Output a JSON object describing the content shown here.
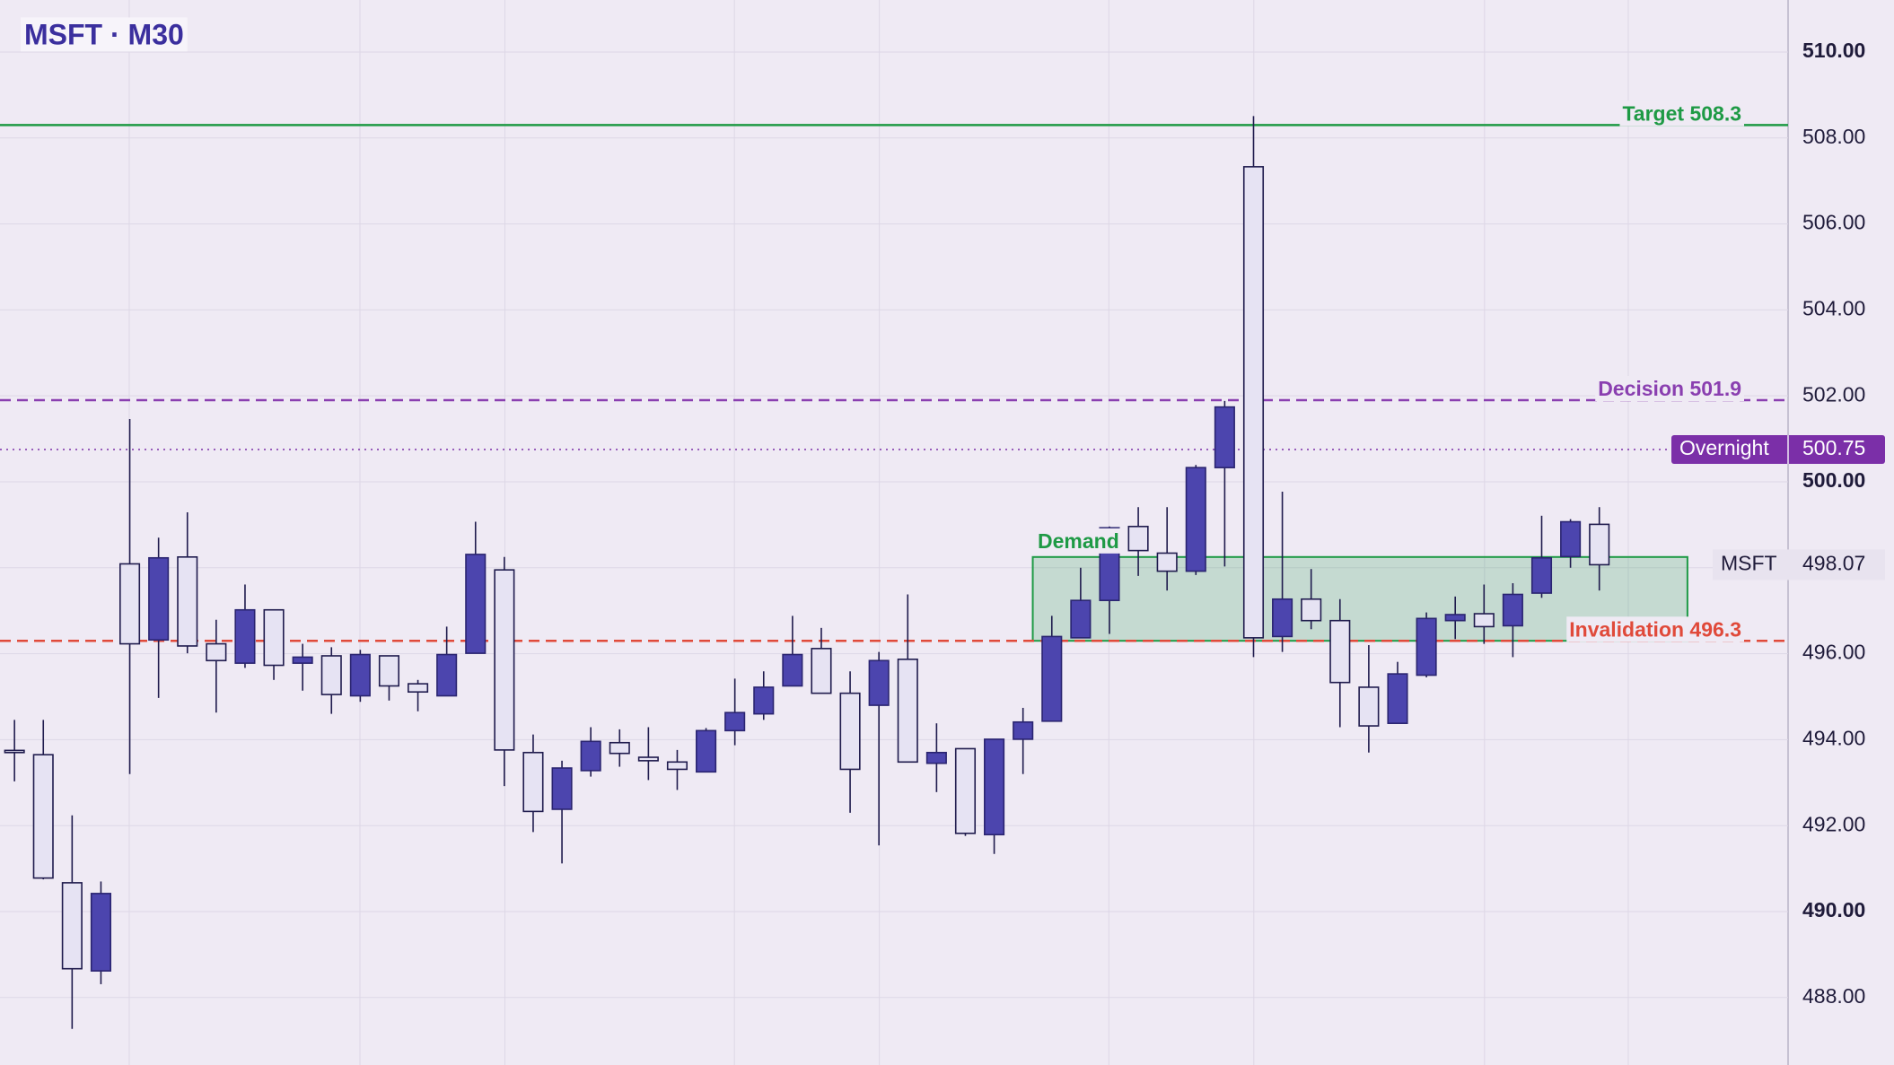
{
  "chart_data": {
    "type": "candlestick",
    "title": "MSFT · M30",
    "series": [
      {
        "name": "MSFT",
        "open": [
          493.75,
          493.65,
          490.67,
          488.62,
          498.09,
          496.32,
          498.25,
          496.23,
          495.78,
          497.02,
          495.78,
          495.95,
          495.02,
          495.95,
          495.3,
          495.02,
          496.01,
          497.95,
          493.7,
          492.38,
          493.28,
          493.93,
          493.59,
          493.48,
          493.25,
          494.21,
          494.6,
          495.25,
          496.12,
          495.08,
          494.8,
          495.87,
          493.45,
          493.79,
          491.79,
          494.01,
          494.43,
          496.37,
          497.24,
          498.96,
          498.34,
          497.92,
          500.33,
          507.33,
          496.4,
          497.27,
          496.77,
          495.22,
          494.38,
          495.5,
          496.77,
          496.93,
          496.65,
          497.41,
          498.26,
          499.01
        ],
        "high": [
          494.46,
          494.46,
          492.24,
          490.7,
          501.46,
          498.7,
          499.29,
          496.79,
          497.61,
          497.02,
          496.23,
          496.15,
          496.09,
          495.95,
          495.39,
          496.63,
          499.07,
          498.25,
          494.12,
          493.51,
          494.29,
          494.24,
          494.29,
          493.76,
          494.27,
          495.42,
          495.59,
          496.88,
          496.6,
          495.59,
          496.04,
          497.38,
          494.38,
          493.79,
          494.01,
          494.74,
          496.88,
          498.0,
          498.96,
          499.41,
          499.41,
          500.39,
          501.88,
          508.51,
          499.77,
          497.97,
          497.27,
          496.2,
          495.81,
          496.96,
          497.33,
          497.61,
          497.64,
          499.21,
          499.13,
          499.41
        ],
        "low": [
          493.03,
          490.75,
          487.27,
          488.31,
          493.2,
          494.97,
          496.01,
          494.63,
          495.67,
          495.39,
          495.14,
          494.6,
          494.88,
          494.91,
          494.66,
          495.02,
          496.01,
          492.92,
          491.85,
          491.12,
          493.14,
          493.37,
          493.06,
          492.83,
          493.25,
          493.87,
          494.46,
          495.25,
          495.08,
          492.3,
          491.54,
          493.48,
          492.78,
          491.76,
          491.34,
          493.2,
          494.43,
          496.37,
          496.46,
          497.81,
          497.47,
          497.83,
          498.03,
          495.92,
          496.04,
          496.57,
          494.29,
          493.7,
          494.38,
          495.45,
          496.34,
          496.23,
          495.92,
          497.3,
          498.0,
          497.47
        ],
        "close": [
          493.7,
          490.78,
          488.67,
          490.42,
          496.23,
          498.23,
          496.18,
          495.84,
          497.02,
          495.73,
          495.92,
          495.05,
          495.98,
          495.25,
          495.11,
          495.98,
          498.31,
          493.76,
          492.33,
          493.34,
          493.96,
          493.68,
          493.51,
          493.31,
          494.21,
          494.63,
          495.22,
          495.98,
          495.08,
          493.31,
          495.84,
          493.48,
          493.7,
          491.82,
          494.01,
          494.41,
          496.4,
          497.24,
          498.93,
          498.4,
          497.92,
          500.33,
          501.74,
          496.37,
          497.27,
          496.77,
          495.33,
          494.32,
          495.53,
          496.82,
          496.91,
          496.63,
          497.38,
          498.23,
          499.07,
          498.07
        ]
      }
    ],
    "up_color": "#4c45ae",
    "down_color": "#e6e3f3",
    "ylim": [
      486.43,
      511.21
    ],
    "yticks": [
      {
        "value": 488,
        "label": "488.00"
      },
      {
        "value": 490,
        "label": "490.00"
      },
      {
        "value": 492,
        "label": "492.00"
      },
      {
        "value": 494,
        "label": "494.00"
      },
      {
        "value": 496,
        "label": "496.00"
      },
      {
        "value": 498,
        "label": "498.00"
      },
      {
        "value": 500,
        "label": "500.00"
      },
      {
        "value": 502,
        "label": "502.00"
      },
      {
        "value": 504,
        "label": "504.00"
      },
      {
        "value": 506,
        "label": "506.00"
      },
      {
        "value": 508,
        "label": "508.00"
      },
      {
        "value": 510,
        "label": "510.00"
      }
    ],
    "grid": true,
    "levels": [
      {
        "label": "Target 508.3",
        "value": 508.3,
        "color": "#1e9a45",
        "style": "solid"
      },
      {
        "label": "Decision 501.9",
        "value": 501.9,
        "color": "#8a3fb0",
        "style": "dashed"
      },
      {
        "label": "Invalidation 496.3",
        "value": 496.3,
        "color": "#e04a3a",
        "style": "dashed"
      }
    ],
    "overnight": {
      "label": "Overnight",
      "value": 500.75,
      "color": "#7b2fa8"
    },
    "last_price": {
      "label": "MSFT",
      "value": 498.07
    },
    "zone": {
      "label": "Demand",
      "top": 498.25,
      "bottom": 496.3,
      "color": "#1e9a45"
    }
  }
}
